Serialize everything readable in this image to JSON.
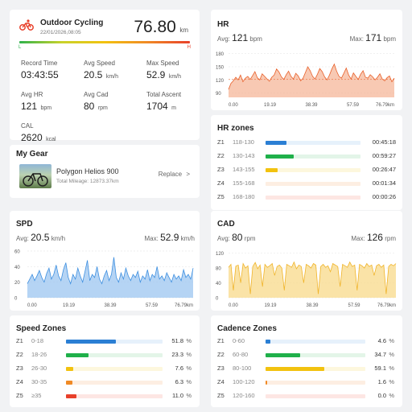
{
  "ride": {
    "title": "Outdoor Cycling",
    "datetime": "22/01/2026,08:05",
    "distance": "76.80",
    "distance_unit": "km",
    "left_marker": "L",
    "right_marker": "H"
  },
  "stats": [
    {
      "label": "Record Time",
      "value": "03:43:55",
      "unit": ""
    },
    {
      "label": "Avg Speed",
      "value": "20.5",
      "unit": "km/h"
    },
    {
      "label": "Max Speed",
      "value": "52.9",
      "unit": "km/h"
    },
    {
      "label": "Avg HR",
      "value": "121",
      "unit": "bpm"
    },
    {
      "label": "Avg Cad",
      "value": "80",
      "unit": "rpm"
    },
    {
      "label": "Total Ascent",
      "value": "1704",
      "unit": "m"
    },
    {
      "label": "CAL",
      "value": "2620",
      "unit": "kcal"
    }
  ],
  "gear": {
    "heading": "My Gear",
    "bike_name": "Polygon Helios 900",
    "mileage": "Total Mileage: 12873.37km",
    "replace_label": "Replace",
    "chevron": ">"
  },
  "hr": {
    "title": "HR",
    "avg_label": "Avg:",
    "avg_value": "121",
    "avg_unit": "bpm",
    "max_label": "Max:",
    "max_value": "171",
    "max_unit": "bpm"
  },
  "hr_zones": {
    "title": "HR zones",
    "zones": [
      {
        "id": "Z1",
        "range": "118-130",
        "time": "00:45:18",
        "frac": 0.22,
        "color": "#2b7fd4",
        "track": "#e6f1fb"
      },
      {
        "id": "Z2",
        "range": "130-143",
        "time": "00:59:27",
        "frac": 0.3,
        "color": "#1fb04a",
        "track": "#e3f5e8"
      },
      {
        "id": "Z3",
        "range": "143-155",
        "time": "00:26:47",
        "frac": 0.13,
        "color": "#f2c20f",
        "track": "#fdf7dd"
      },
      {
        "id": "Z4",
        "range": "155-168",
        "time": "00:01:34",
        "frac": 0.0,
        "color": "#f08a25",
        "track": "#fdeee2"
      },
      {
        "id": "Z5",
        "range": "168-180",
        "time": "00:00:26",
        "frac": 0.0,
        "color": "#e8402a",
        "track": "#fde6e3"
      }
    ]
  },
  "spd": {
    "title": "SPD",
    "avg_label": "Avg:",
    "avg_value": "20.5",
    "avg_unit": "km/h",
    "max_label": "Max:",
    "max_value": "52.9",
    "max_unit": "km/h"
  },
  "cad": {
    "title": "CAD",
    "avg_label": "Avg:",
    "avg_value": "80",
    "avg_unit": "rpm",
    "max_label": "Max:",
    "max_value": "126",
    "max_unit": "rpm"
  },
  "speed_zones": {
    "title": "Speed Zones",
    "zones": [
      {
        "id": "Z1",
        "range": "0-18",
        "pct": "51.8",
        "frac": 0.518,
        "color": "#2b7fd4",
        "track": "#e6f1fb"
      },
      {
        "id": "Z2",
        "range": "18-26",
        "pct": "23.3",
        "frac": 0.233,
        "color": "#1fb04a",
        "track": "#e3f5e8"
      },
      {
        "id": "Z3",
        "range": "26-30",
        "pct": "7.6",
        "frac": 0.076,
        "color": "#f2c20f",
        "track": "#fdf7dd"
      },
      {
        "id": "Z4",
        "range": "30-35",
        "pct": "6.3",
        "frac": 0.063,
        "color": "#f08a25",
        "track": "#fdeee2"
      },
      {
        "id": "Z5",
        "range": "≥35",
        "pct": "11.0",
        "frac": 0.11,
        "color": "#e8402a",
        "track": "#fde6e3"
      }
    ],
    "pct_unit": "%"
  },
  "cadence_zones": {
    "title": "Cadence Zones",
    "zones": [
      {
        "id": "Z1",
        "range": "0-60",
        "pct": "4.6",
        "frac": 0.046,
        "color": "#2b7fd4",
        "track": "#e6f1fb"
      },
      {
        "id": "Z2",
        "range": "60-80",
        "pct": "34.7",
        "frac": 0.347,
        "color": "#1fb04a",
        "track": "#e3f5e8"
      },
      {
        "id": "Z3",
        "range": "80-100",
        "pct": "59.1",
        "frac": 0.591,
        "color": "#f2c20f",
        "track": "#fdf7dd"
      },
      {
        "id": "Z4",
        "range": "100-120",
        "pct": "1.6",
        "frac": 0.016,
        "color": "#f08a25",
        "track": "#fdeee2"
      },
      {
        "id": "Z5",
        "range": "120-160",
        "pct": "0.0",
        "frac": 0.0,
        "color": "#e8402a",
        "track": "#fde6e3"
      }
    ],
    "pct_unit": "%"
  },
  "chart_data": [
    {
      "type": "area",
      "title": "HR",
      "xlabel": "",
      "ylabel": "",
      "x_ticks": [
        "0.00",
        "19.19",
        "38.39",
        "57.59",
        "76.79km"
      ],
      "y_ticks": [
        90,
        120,
        150,
        180
      ],
      "ylim": [
        80,
        185
      ],
      "color": "#e8602a",
      "fill": "#f6b79a",
      "reference_line": 121,
      "series": [
        {
          "values": [
            98,
            112,
            118,
            126,
            120,
            131,
            116,
            124,
            128,
            121,
            130,
            139,
            125,
            120,
            134,
            128,
            122,
            117,
            126,
            131,
            145,
            138,
            127,
            121,
            132,
            140,
            128,
            122,
            135,
            129,
            118,
            124,
            137,
            150,
            141,
            128,
            122,
            133,
            146,
            139,
            127,
            120,
            131,
            145,
            156,
            140,
            128,
            124,
            135,
            147,
            131,
            122,
            136,
            128,
            121,
            133,
            141,
            126,
            124,
            132,
            127,
            120,
            126,
            134,
            122,
            118,
            125,
            129,
            116,
            124
          ]
        }
      ]
    },
    {
      "type": "area",
      "title": "SPD",
      "xlabel": "",
      "ylabel": "",
      "x_ticks": [
        "0.00",
        "19.19",
        "38.39",
        "57.59",
        "76.79km"
      ],
      "y_ticks": [
        0,
        20,
        40,
        60
      ],
      "ylim": [
        0,
        62
      ],
      "color": "#3d8fe0",
      "fill": "#9cc6f0",
      "series": [
        {
          "values": [
            18,
            24,
            30,
            22,
            28,
            35,
            26,
            20,
            31,
            38,
            24,
            30,
            42,
            28,
            22,
            36,
            45,
            26,
            18,
            30,
            24,
            38,
            28,
            20,
            34,
            48,
            22,
            30,
            26,
            40,
            24,
            18,
            28,
            35,
            22,
            30,
            52,
            26,
            20,
            32,
            24,
            38,
            28,
            22,
            30,
            26,
            34,
            20,
            28,
            24,
            36,
            22,
            30,
            26,
            40,
            24,
            28,
            22,
            32,
            26,
            20,
            30,
            24,
            28,
            22,
            36,
            26,
            30,
            24,
            38
          ]
        }
      ]
    },
    {
      "type": "area",
      "title": "CAD",
      "xlabel": "",
      "ylabel": "",
      "x_ticks": [
        "0.00",
        "19.19",
        "38.39",
        "57.59",
        "76.79km"
      ],
      "y_ticks": [
        0,
        40,
        80,
        120
      ],
      "ylim": [
        0,
        130
      ],
      "color": "#f0b42a",
      "fill": "#f8d98a",
      "series": [
        {
          "values": [
            82,
            90,
            20,
            85,
            88,
            40,
            92,
            80,
            86,
            10,
            84,
            95,
            78,
            88,
            30,
            90,
            82,
            86,
            92,
            60,
            84,
            88,
            80,
            20,
            90,
            86,
            82,
            96,
            78,
            88,
            84,
            40,
            90,
            86,
            80,
            92,
            88,
            10,
            84,
            90,
            82,
            86,
            70,
            92,
            88,
            84,
            30,
            90,
            86,
            82,
            96,
            84,
            88,
            20,
            90,
            86,
            80,
            92,
            84,
            88,
            60,
            86,
            90,
            82,
            88,
            10,
            84,
            90,
            86,
            92
          ]
        }
      ]
    }
  ]
}
